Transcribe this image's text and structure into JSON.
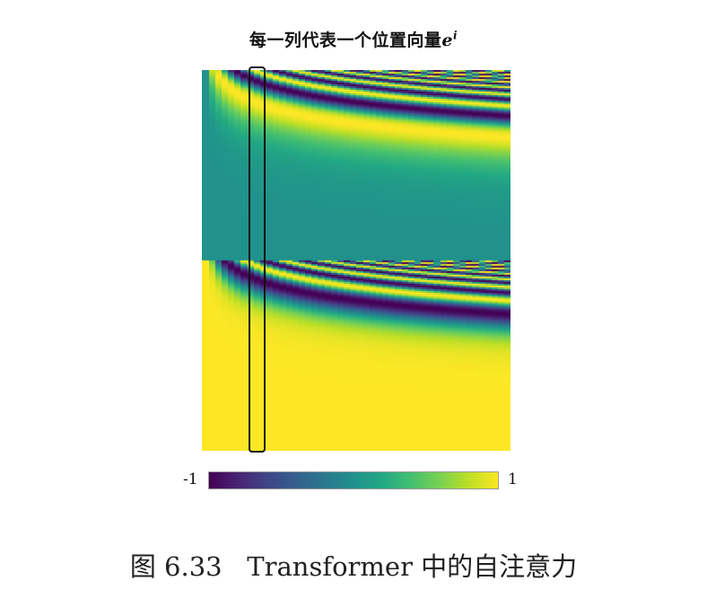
{
  "figure": {
    "title_text": "每一列代表一个位置向量",
    "title_var": "e",
    "title_sup": "i",
    "colorbar": {
      "min_label": "-1",
      "max_label": "1",
      "colormap": "viridis",
      "range": [
        -1,
        1
      ]
    },
    "caption_label": "图 6.33",
    "caption_text": "Transformer 中的自注意力",
    "highlight_color": "#111111"
  },
  "chart_data": {
    "type": "heatmap",
    "title": "每一列代表一个位置向量e^i",
    "value_range": [
      -1,
      1
    ],
    "colormap": "viridis",
    "description_of_encoding": "positional encodings; top half sine components, bottom half cosine components",
    "highlighted_column": 4
  }
}
